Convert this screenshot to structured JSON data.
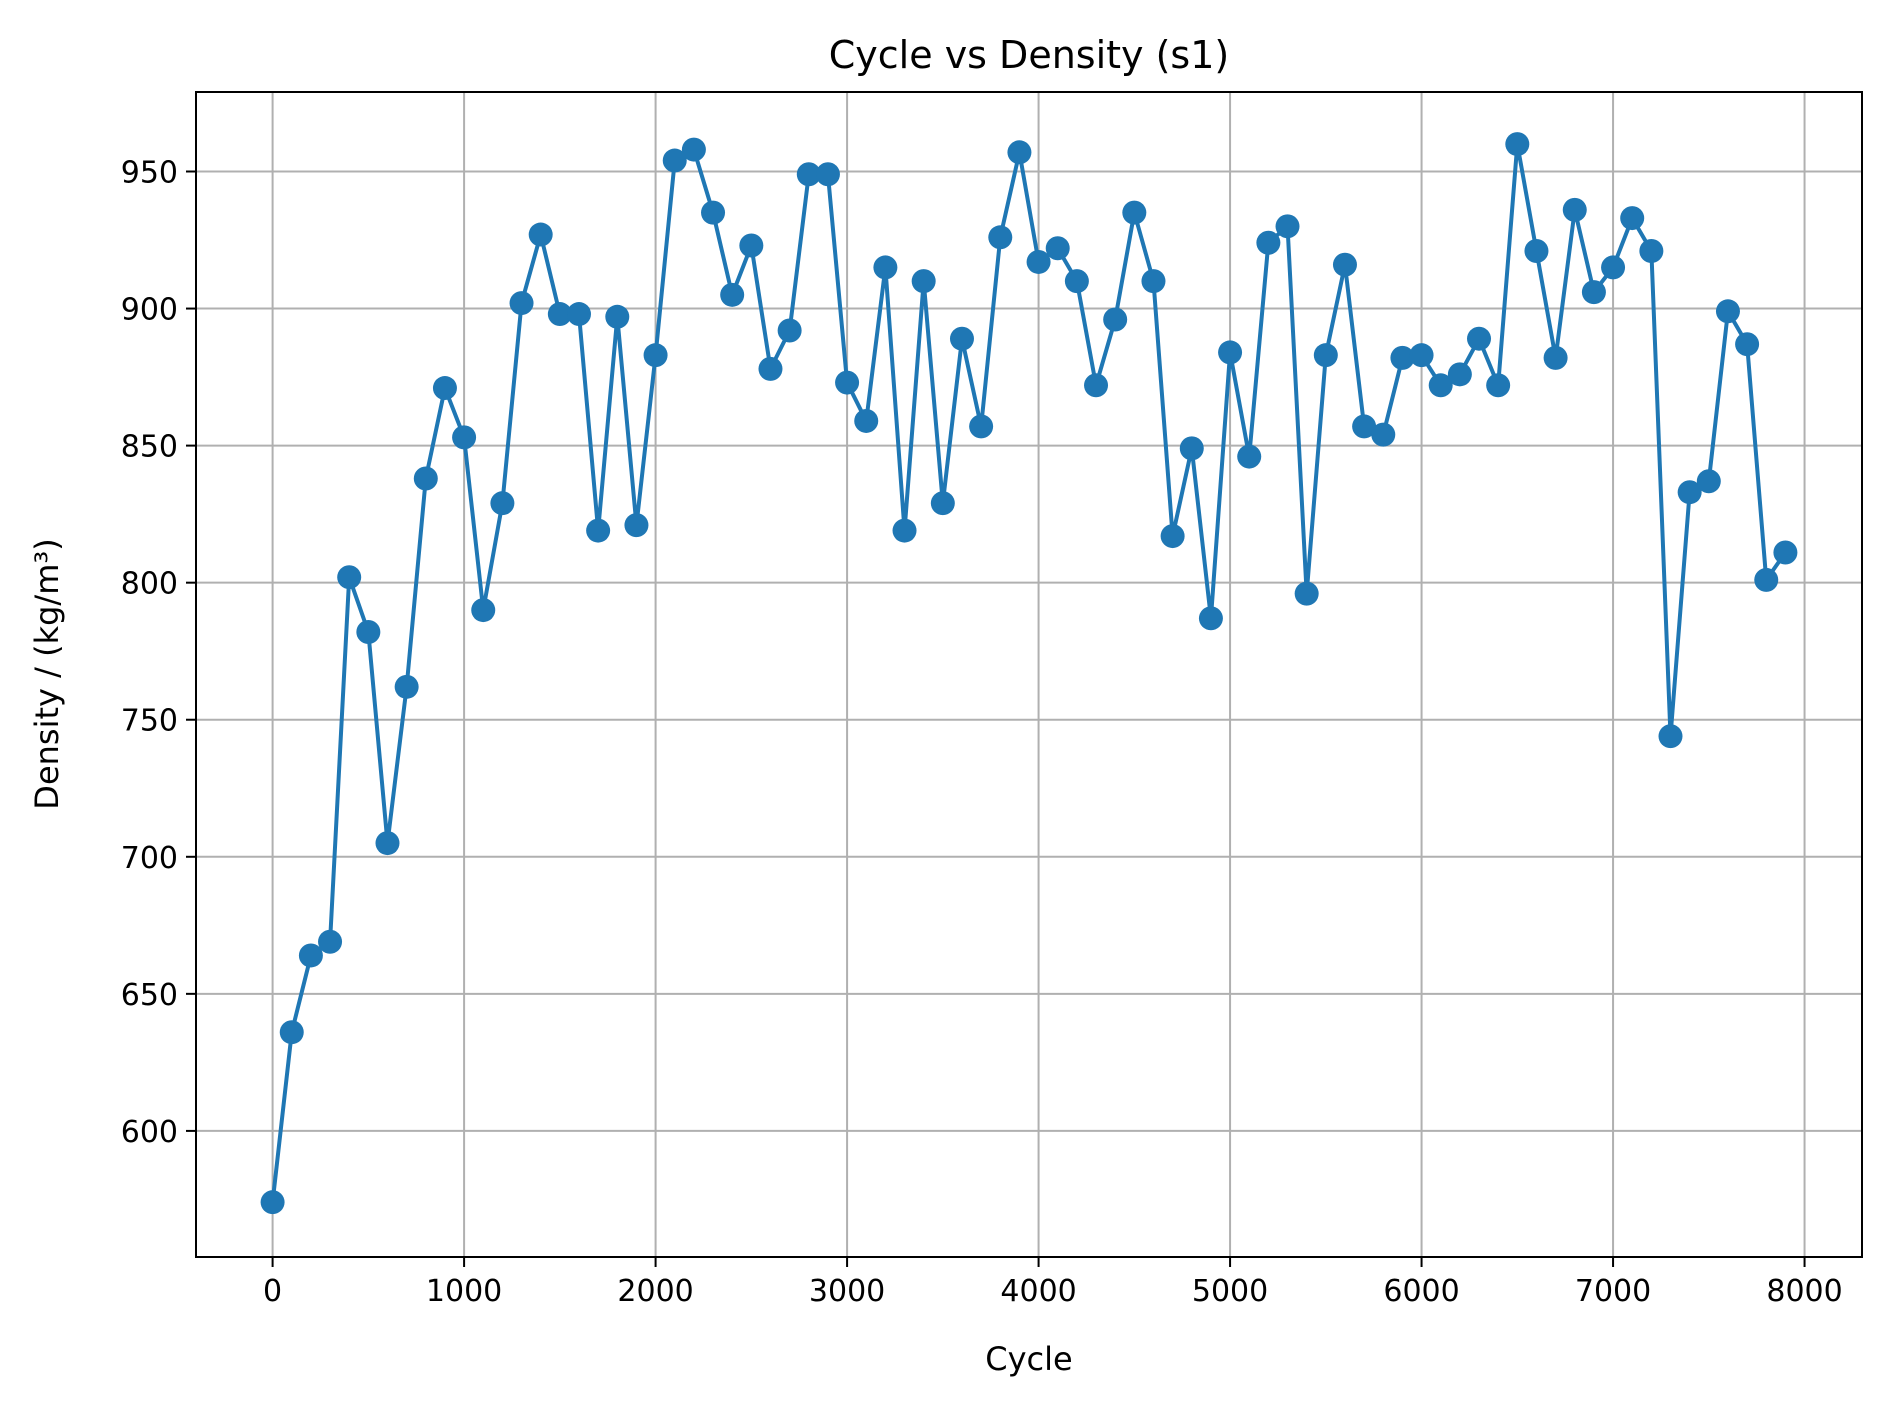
{
  "chart_data": {
    "type": "line",
    "title": "Cycle vs Density (s1)",
    "xlabel": "Cycle",
    "ylabel": "Density / (kg/m³)",
    "xlim": [
      -400,
      8300
    ],
    "ylim": [
      554,
      979
    ],
    "xticks": [
      0,
      1000,
      2000,
      3000,
      4000,
      5000,
      6000,
      7000,
      8000
    ],
    "yticks": [
      600,
      650,
      700,
      750,
      800,
      850,
      900,
      950
    ],
    "grid": true,
    "marker": "circle",
    "line_color": "#1f77b4",
    "series": [
      {
        "x": [
          0,
          100,
          200,
          300,
          400,
          500,
          600,
          700,
          800,
          900,
          1000,
          1100,
          1200,
          1300,
          1400,
          1500,
          1600,
          1700,
          1800,
          1900,
          2000,
          2100,
          2200,
          2300,
          2400,
          2500,
          2600,
          2700,
          2800,
          2900,
          3000,
          3100,
          3200,
          3300,
          3400,
          3500,
          3600,
          3700,
          3800,
          3900,
          4000,
          4100,
          4200,
          4300,
          4400,
          4500,
          4600,
          4700,
          4800,
          4900,
          5000,
          5100,
          5200,
          5300,
          5400,
          5500,
          5600,
          5700,
          5800,
          5900,
          6000,
          6100,
          6200,
          6300,
          6400,
          6500,
          6600,
          6700,
          6800,
          6900,
          7000,
          7100,
          7200,
          7300,
          7400,
          7500,
          7600,
          7700,
          7800,
          7900
        ],
        "values": [
          574,
          636,
          664,
          669,
          802,
          782,
          705,
          762,
          838,
          871,
          853,
          790,
          829,
          902,
          927,
          898,
          898,
          819,
          897,
          821,
          883,
          954,
          958,
          935,
          905,
          923,
          878,
          892,
          949,
          949,
          873,
          859,
          915,
          819,
          910,
          829,
          889,
          857,
          926,
          957,
          917,
          922,
          910,
          872,
          896,
          935,
          910,
          817,
          849,
          787,
          884,
          846,
          924,
          930,
          796,
          883,
          916,
          857,
          854,
          882,
          883,
          872,
          876,
          889,
          872,
          960,
          921,
          882,
          936,
          906,
          915,
          933,
          921,
          744,
          833,
          837,
          899,
          887,
          801,
          811
        ]
      }
    ]
  }
}
